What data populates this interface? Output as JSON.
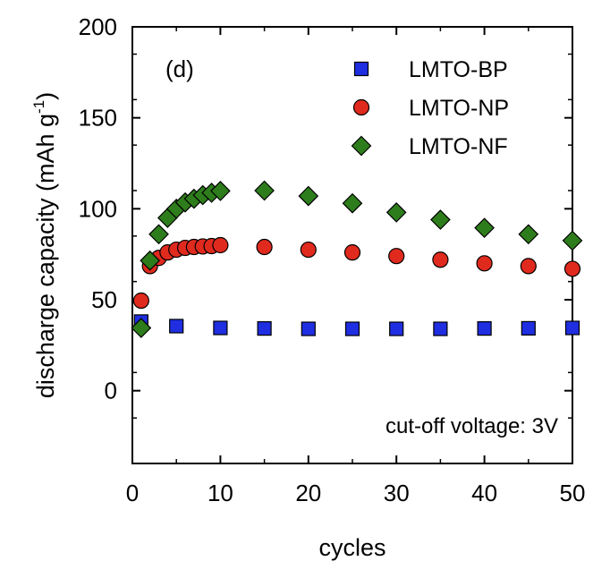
{
  "chart_data": {
    "type": "scatter",
    "panel_label": "(d)",
    "xlabel": "cycles",
    "ylabel": "discharge capacity (mAh g",
    "ylabel_sup": "-1",
    "ylabel_close": ")",
    "annotation": "cut-off voltage: 3V",
    "xlim": [
      0,
      50
    ],
    "ylim": [
      -40,
      200
    ],
    "xticks": [
      0,
      10,
      20,
      30,
      40,
      50
    ],
    "yticks": [
      0,
      50,
      100,
      150,
      200
    ],
    "legend_position": "top-right",
    "grid": false,
    "series": [
      {
        "name": "LMTO-BP",
        "marker": "square",
        "color": "#1f2ee0",
        "x": [
          1,
          5,
          10,
          15,
          20,
          25,
          30,
          35,
          40,
          45,
          50
        ],
        "y": [
          38,
          35.5,
          34.5,
          34.2,
          34,
          34,
          34,
          34,
          34.2,
          34.3,
          34.5
        ]
      },
      {
        "name": "LMTO-NP",
        "marker": "circle",
        "color": "#e02a1e",
        "x": [
          1,
          2,
          3,
          4,
          5,
          6,
          7,
          8,
          9,
          10,
          15,
          20,
          25,
          30,
          35,
          40,
          45,
          50
        ],
        "y": [
          49.5,
          68.5,
          73,
          76,
          77.5,
          78.5,
          79,
          79.3,
          79.5,
          80,
          79,
          77.5,
          76,
          74,
          72,
          70,
          68.5,
          67
        ]
      },
      {
        "name": "LMTO-NF",
        "marker": "diamond",
        "color": "#2e7d1c",
        "x": [
          1,
          2,
          3,
          4,
          5,
          6,
          7,
          8,
          9,
          10,
          15,
          20,
          25,
          30,
          35,
          40,
          45,
          50
        ],
        "y": [
          34.5,
          71.5,
          86,
          95,
          100,
          103.5,
          105.5,
          107.5,
          108.8,
          109.8,
          110,
          107,
          103,
          98,
          94,
          89.5,
          86,
          82.5
        ]
      }
    ]
  }
}
